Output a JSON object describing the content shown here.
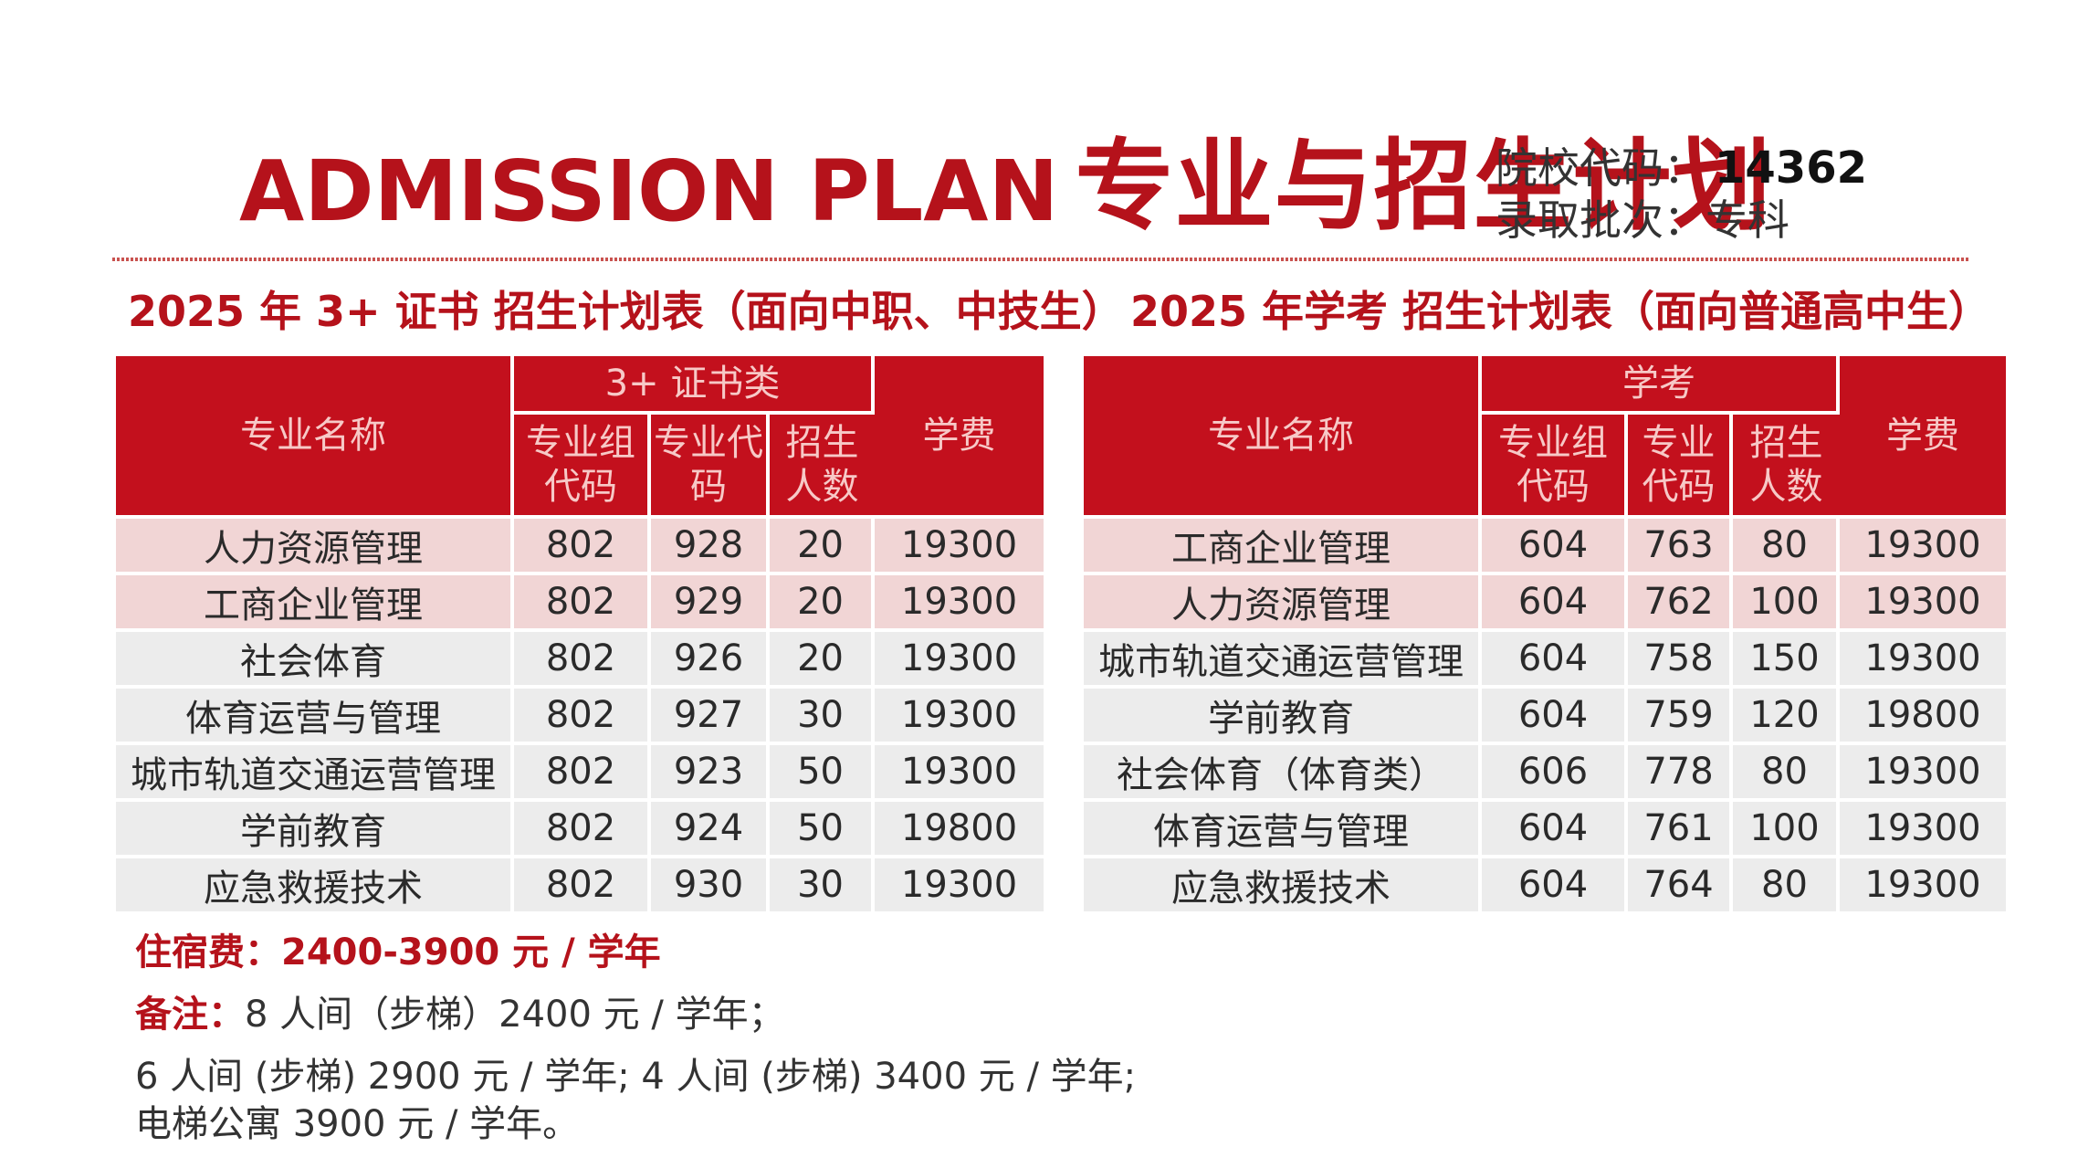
{
  "header": {
    "title_en": "ADMISSION PLAN",
    "title_zh": "专业与招生计划",
    "school_code_label": "院校代码：",
    "school_code": "14362",
    "batch_label": "录取批次：",
    "batch": "专科"
  },
  "left_table": {
    "section_title": "2025 年 3+ 证书 招生计划表（面向中职、中技生）",
    "headers": {
      "major_name": "专业名称",
      "group": "3+ 证书类",
      "group_code": "专业组代码",
      "major_code": "专业代码",
      "enroll_count": "招生人数",
      "tuition": "学费"
    },
    "rows": [
      {
        "name": "人力资源管理",
        "group_code": "802",
        "major_code": "928",
        "count": "20",
        "tuition": "19300"
      },
      {
        "name": "工商企业管理",
        "group_code": "802",
        "major_code": "929",
        "count": "20",
        "tuition": "19300"
      },
      {
        "name": "社会体育",
        "group_code": "802",
        "major_code": "926",
        "count": "20",
        "tuition": "19300"
      },
      {
        "name": "体育运营与管理",
        "group_code": "802",
        "major_code": "927",
        "count": "30",
        "tuition": "19300"
      },
      {
        "name": "城市轨道交通运营管理",
        "group_code": "802",
        "major_code": "923",
        "count": "50",
        "tuition": "19300"
      },
      {
        "name": "学前教育",
        "group_code": "802",
        "major_code": "924",
        "count": "50",
        "tuition": "19800"
      },
      {
        "name": "应急救援技术",
        "group_code": "802",
        "major_code": "930",
        "count": "30",
        "tuition": "19300"
      }
    ]
  },
  "right_table": {
    "section_title": "2025 年学考 招生计划表（面向普通高中生）",
    "headers": {
      "major_name": "专业名称",
      "group": "学考",
      "group_code": "专业组代码",
      "major_code": "专业代码",
      "enroll_count": "招生人数",
      "tuition": "学费"
    },
    "rows": [
      {
        "name": "工商企业管理",
        "group_code": "604",
        "major_code": "763",
        "count": "80",
        "tuition": "19300"
      },
      {
        "name": "人力资源管理",
        "group_code": "604",
        "major_code": "762",
        "count": "100",
        "tuition": "19300"
      },
      {
        "name": "城市轨道交通运营管理",
        "group_code": "604",
        "major_code": "758",
        "count": "150",
        "tuition": "19300"
      },
      {
        "name": "学前教育",
        "group_code": "604",
        "major_code": "759",
        "count": "120",
        "tuition": "19800"
      },
      {
        "name": "社会体育（体育类）",
        "group_code": "606",
        "major_code": "778",
        "count": "80",
        "tuition": "19300"
      },
      {
        "name": "体育运营与管理",
        "group_code": "604",
        "major_code": "761",
        "count": "100",
        "tuition": "19300"
      },
      {
        "name": "应急救援技术",
        "group_code": "604",
        "major_code": "764",
        "count": "80",
        "tuition": "19300"
      }
    ]
  },
  "notes": {
    "fee_label": "住宿费：",
    "fee_value": "2400-3900 元 / 学年",
    "remark_label": "备注：",
    "remark_line1": "8 人间（步梯）2400 元 / 学年；",
    "remark_line2": "6 人间 (步梯) 2900 元 / 学年; 4 人间 (步梯) 3400 元 / 学年;",
    "remark_line3": "电梯公寓 3900 元 / 学年。"
  },
  "colors": {
    "brand_red": "#c3101d",
    "title_red": "#b5121b",
    "row_pink": "#f1d5d5",
    "row_grey": "#ececec"
  }
}
